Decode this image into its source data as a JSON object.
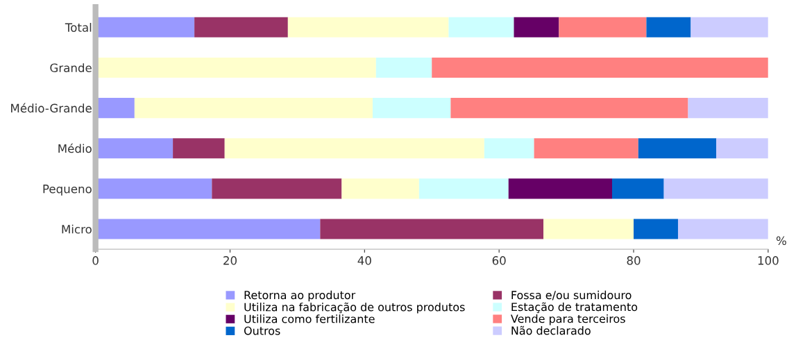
{
  "chart_data": {
    "type": "bar",
    "orientation": "horizontal",
    "stacked": true,
    "xlabel": "%",
    "categories": [
      "Total",
      "Grande",
      "Médio-Grande",
      "Médio",
      "Pequeno",
      "Micro"
    ],
    "series": [
      {
        "name": "Retorna ao produtor",
        "color": "#9999ff",
        "values": [
          14.7,
          0,
          5.8,
          11.5,
          17.3,
          33.4
        ]
      },
      {
        "name": "Fossa e/ou sumidouro",
        "color": "#993366",
        "values": [
          13.9,
          0,
          0,
          7.7,
          19.3,
          33.2
        ]
      },
      {
        "name": "Utiliza na fabricação de outros produtos",
        "color": "#ffffcc",
        "values": [
          23.9,
          41.7,
          35.4,
          38.6,
          11.5,
          13.4
        ]
      },
      {
        "name": "Estação de tratamento",
        "color": "#ccffff",
        "values": [
          9.7,
          8.3,
          11.6,
          7.4,
          13.3,
          0
        ]
      },
      {
        "name": "Utiliza como fertilizante",
        "color": "#660066",
        "values": [
          6.7,
          0,
          0,
          0,
          15.4,
          0
        ]
      },
      {
        "name": "Vende para terceiros",
        "color": "#ff8080",
        "values": [
          13.0,
          50.0,
          35.3,
          15.5,
          0,
          0
        ]
      },
      {
        "name": "Outros",
        "color": "#0066cc",
        "values": [
          6.6,
          0,
          0,
          11.6,
          7.7,
          6.6
        ]
      },
      {
        "name": "Não declarado",
        "color": "#ccccff",
        "values": [
          11.5,
          0,
          11.9,
          7.7,
          15.5,
          13.4
        ]
      }
    ],
    "xlim": [
      0,
      100
    ],
    "xticks": [
      0,
      20,
      40,
      60,
      80,
      100
    ],
    "grid": false,
    "legend": "bottom"
  }
}
